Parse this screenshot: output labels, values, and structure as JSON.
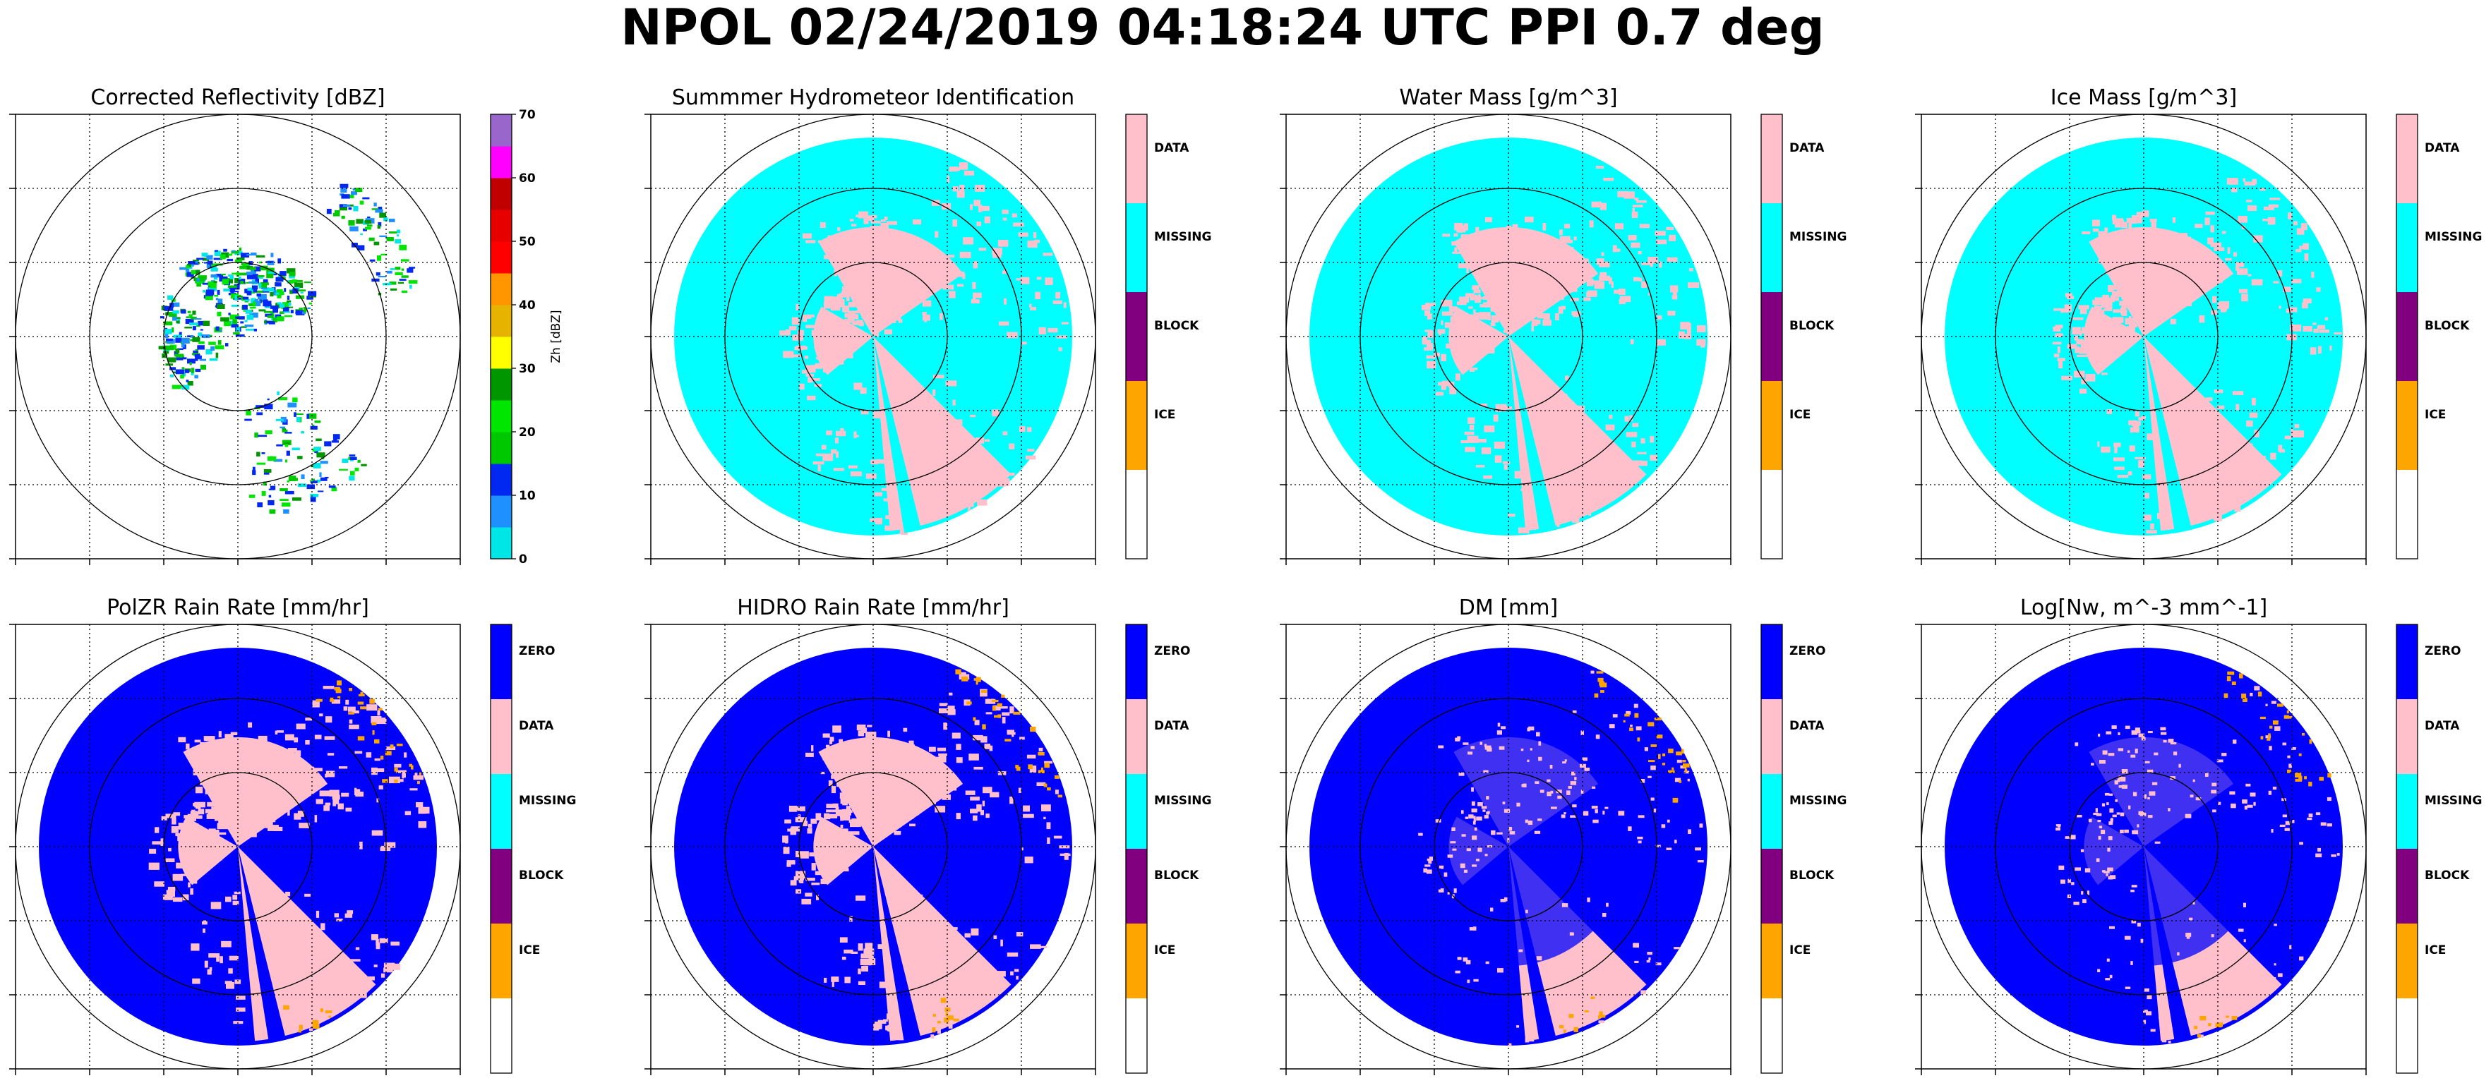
{
  "figure": {
    "suptitle": "NPOL 02/24/2019 04:18:24 UTC PPI 0.7 deg",
    "colors": {
      "zero": "#0000ff",
      "data": "#ffc0cb",
      "missing": "#00ffff",
      "block": "#800080",
      "ice": "#ffa500",
      "empty": "#ffffff"
    }
  },
  "chart_data": [
    {
      "id": "reflectivity",
      "type": "heatmap",
      "title": "Corrected Reflectivity [dBZ]",
      "projection": "polar-ppi",
      "grid": true,
      "range_rings": 3,
      "colorbar": {
        "kind": "continuous",
        "label": "Zh [dBZ]",
        "ticks": [
          "0",
          "10",
          "20",
          "30",
          "40",
          "50",
          "60",
          "70"
        ],
        "vmin": 0,
        "vmax": 70,
        "bins": [
          {
            "from": 0,
            "to": 5,
            "color": "#00e5e5"
          },
          {
            "from": 5,
            "to": 10,
            "color": "#1e90ff"
          },
          {
            "from": 10,
            "to": 15,
            "color": "#0028f0"
          },
          {
            "from": 15,
            "to": 20,
            "color": "#00c800"
          },
          {
            "from": 20,
            "to": 25,
            "color": "#00e600"
          },
          {
            "from": 25,
            "to": 30,
            "color": "#009600"
          },
          {
            "from": 30,
            "to": 35,
            "color": "#ffff00"
          },
          {
            "from": 35,
            "to": 40,
            "color": "#e6b400"
          },
          {
            "from": 40,
            "to": 45,
            "color": "#ff9600"
          },
          {
            "from": 45,
            "to": 50,
            "color": "#ff0000"
          },
          {
            "from": 50,
            "to": 55,
            "color": "#e60000"
          },
          {
            "from": 55,
            "to": 60,
            "color": "#c00000"
          },
          {
            "from": 60,
            "to": 65,
            "color": "#ff00ff"
          },
          {
            "from": 65,
            "to": 70,
            "color": "#9966cc"
          }
        ]
      }
    },
    {
      "id": "hid",
      "type": "heatmap",
      "title": "Summmer Hydrometeor Identification",
      "projection": "polar-ppi",
      "grid": true,
      "range_rings": 3,
      "background_class": "MISSING",
      "echo_class": "DATA",
      "colorbar": {
        "kind": "categorical",
        "categories": [
          "DATA",
          "MISSING",
          "BLOCK",
          "ICE",
          ""
        ]
      }
    },
    {
      "id": "water_mass",
      "type": "heatmap",
      "title": "Water Mass [g/m^3]",
      "projection": "polar-ppi",
      "grid": true,
      "range_rings": 3,
      "background_class": "MISSING",
      "echo_class": "DATA",
      "colorbar": {
        "kind": "categorical",
        "categories": [
          "DATA",
          "MISSING",
          "BLOCK",
          "ICE",
          ""
        ]
      }
    },
    {
      "id": "ice_mass",
      "type": "heatmap",
      "title": "Ice Mass [g/m^3]",
      "projection": "polar-ppi",
      "grid": true,
      "range_rings": 3,
      "background_class": "MISSING",
      "echo_class": "DATA",
      "colorbar": {
        "kind": "categorical",
        "categories": [
          "DATA",
          "MISSING",
          "BLOCK",
          "ICE",
          ""
        ]
      }
    },
    {
      "id": "polzr_rain",
      "type": "heatmap",
      "title": "PolZR Rain Rate [mm/hr]",
      "projection": "polar-ppi",
      "grid": true,
      "range_rings": 3,
      "background_class": "ZERO",
      "echo_class": "DATA",
      "edge_class": "ICE",
      "colorbar": {
        "kind": "categorical",
        "categories": [
          "ZERO",
          "DATA",
          "MISSING",
          "BLOCK",
          "ICE",
          ""
        ]
      }
    },
    {
      "id": "hidro_rain",
      "type": "heatmap",
      "title": "HIDRO Rain Rate [mm/hr]",
      "projection": "polar-ppi",
      "grid": true,
      "range_rings": 3,
      "background_class": "ZERO",
      "echo_class": "DATA",
      "edge_class": "ICE",
      "colorbar": {
        "kind": "categorical",
        "categories": [
          "ZERO",
          "DATA",
          "MISSING",
          "BLOCK",
          "ICE",
          ""
        ]
      }
    },
    {
      "id": "dm",
      "type": "heatmap",
      "title": "DM [mm]",
      "projection": "polar-ppi",
      "grid": true,
      "range_rings": 3,
      "background_class": "ZERO",
      "echo_class": "DATA",
      "edge_class": "ICE",
      "colorbar": {
        "kind": "categorical",
        "categories": [
          "ZERO",
          "DATA",
          "MISSING",
          "BLOCK",
          "ICE",
          ""
        ]
      }
    },
    {
      "id": "log_nw",
      "type": "heatmap",
      "title": "Log[Nw, m^-3 mm^-1]",
      "projection": "polar-ppi",
      "grid": true,
      "range_rings": 3,
      "background_class": "ZERO",
      "echo_class": "DATA",
      "edge_class": "ICE",
      "colorbar": {
        "kind": "categorical",
        "categories": [
          "ZERO",
          "DATA",
          "MISSING",
          "BLOCK",
          "ICE",
          ""
        ]
      }
    }
  ]
}
